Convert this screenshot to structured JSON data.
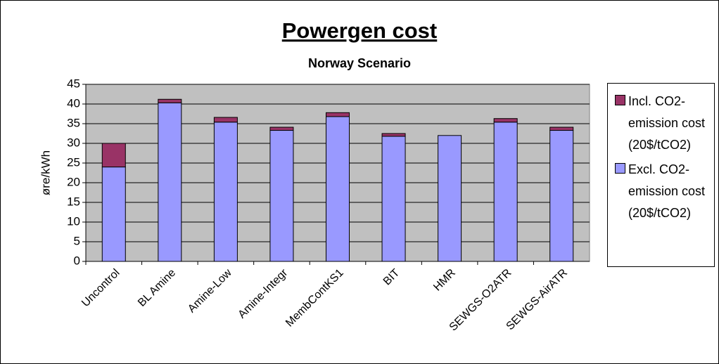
{
  "chart_data": {
    "type": "stacked_bar",
    "title": "Powergen cost",
    "subtitle": "Norway Scenario",
    "y_label": "øre/kWh",
    "categories": [
      "Uncontrol",
      "BL Amine",
      "Amine-Low",
      "Amine-Integr",
      "MembContKS1",
      "BIT",
      "HMR",
      "SEWGS-O2ATR",
      "SEWGS-AirATR"
    ],
    "series": [
      {
        "name": "Excl. CO2-emission cost (20$/tCO2)",
        "color": "#9999ff",
        "values": [
          24,
          40.3,
          35.4,
          33.3,
          36.8,
          31.8,
          32,
          35.4,
          33.3
        ]
      },
      {
        "name": "Incl. CO2-emission cost (20$/tCO2)",
        "color": "#993366",
        "values": [
          6,
          0.9,
          1.2,
          0.8,
          1.0,
          0.7,
          0,
          0.9,
          0.8
        ]
      }
    ],
    "ylim": [
      0,
      45
    ],
    "yticks": [
      0,
      5,
      10,
      15,
      20,
      25,
      30,
      35,
      40,
      45
    ],
    "grid": true,
    "plot_background": "#c0c0c0",
    "legend": "right"
  }
}
